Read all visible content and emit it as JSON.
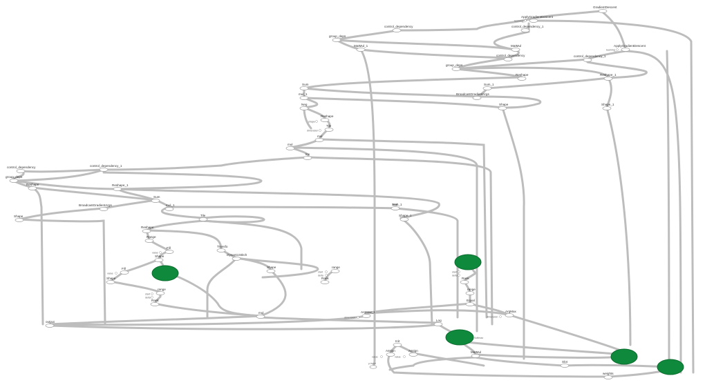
{
  "graph": {
    "nodes": [
      {
        "id": "GradientDescent",
        "label": "GradientDescent"
      },
      {
        "id": "ApplyGradientDescent",
        "label": "ApplyGradientDescent"
      },
      {
        "id": "control_dependency",
        "label": "control_dependency"
      },
      {
        "id": "control_dependency_1",
        "label": "control_dependency_1"
      },
      {
        "id": "group_deps",
        "label": "group_deps"
      },
      {
        "id": "MatMul_1",
        "label": "MatMul_1"
      },
      {
        "id": "MatMul",
        "label": "MatMul"
      },
      {
        "id": "ApplyGradientDescent_1",
        "label": "ApplyGradientDescent"
      },
      {
        "id": "control_dependency_b",
        "label": "control_dependency"
      },
      {
        "id": "control_dependency_1b",
        "label": "control_dependency_1"
      },
      {
        "id": "group_deps_b",
        "label": "group_deps"
      },
      {
        "id": "Reshape_top",
        "label": "Reshape"
      },
      {
        "id": "Reshape_1_top",
        "label": "Reshape_1"
      },
      {
        "id": "Sum",
        "label": "Sum"
      },
      {
        "id": "Sum_1",
        "label": "Sum_1"
      },
      {
        "id": "BroadcastGradientArgs",
        "label": "BroadcastGradientArgs"
      },
      {
        "id": "mul_1",
        "label": "mul_1"
      },
      {
        "id": "Shape_top",
        "label": "Shape"
      },
      {
        "id": "Shape_1_top",
        "label": "Shape_1"
      },
      {
        "id": "Neg",
        "label": "Neg"
      },
      {
        "id": "Reshape_mid",
        "label": "Reshape"
      },
      {
        "id": "Tile_mid",
        "label": "Tile"
      },
      {
        "id": "mul_mid",
        "label": "mul"
      },
      {
        "id": "mul_b",
        "label": "mul"
      },
      {
        "id": "Inv",
        "label": "Inv"
      },
      {
        "id": "control_dependency_l",
        "label": "control_dependency"
      },
      {
        "id": "control_dependency_1l",
        "label": "control_dependency_1"
      },
      {
        "id": "group_deps_l",
        "label": "group_deps"
      },
      {
        "id": "Reshape_l",
        "label": "Reshape"
      },
      {
        "id": "Reshape_1_l",
        "label": "Reshape_1"
      },
      {
        "id": "Sum_l",
        "label": "Sum"
      },
      {
        "id": "Sum_1_l",
        "label": "Sum_1"
      },
      {
        "id": "BroadcastGradientArgs_l",
        "label": "BroadcastGradientArgs"
      },
      {
        "id": "mul_1_l",
        "label": "mul_1"
      },
      {
        "id": "Shape_l",
        "label": "Shape"
      },
      {
        "id": "Tile_l",
        "label": "Tile"
      },
      {
        "id": "Mul_r",
        "label": "Mul"
      },
      {
        "id": "Shape_1_r",
        "label": "Shape_1"
      },
      {
        "id": "Reshape_c",
        "label": "Reshape"
      },
      {
        "id": "Range_c",
        "label": "Range"
      },
      {
        "id": "Fill_c",
        "label": "Fill"
      },
      {
        "id": "Shape_c",
        "label": "Shape"
      },
      {
        "id": "Fill_l",
        "label": "Fill"
      },
      {
        "id": "Shape_ll",
        "label": "Shape"
      },
      {
        "id": "range_c",
        "label": "range"
      },
      {
        "id": "Rank_c",
        "label": "Rank"
      },
      {
        "id": "Transfo",
        "label": "Transfo"
      },
      {
        "id": "DynamicStitch",
        "label": "DynamicStitch"
      },
      {
        "id": "Shape_m",
        "label": "Shape"
      },
      {
        "id": "range_m",
        "label": "range"
      },
      {
        "id": "Rank_m",
        "label": "Rank"
      },
      {
        "id": "mul_c",
        "label": "mul"
      },
      {
        "id": "ArgMax_1",
        "label": "ArgMax_1"
      },
      {
        "id": "ArgMax",
        "label": "ArgMax"
      },
      {
        "id": "Rank_r",
        "label": "Rank"
      },
      {
        "id": "range_r",
        "label": "range"
      },
      {
        "id": "Equal",
        "label": "Equal"
      },
      {
        "id": "Log",
        "label": "Log"
      },
      {
        "id": "Softmax",
        "label": "Softmax"
      },
      {
        "id": "Init",
        "label": "Init"
      },
      {
        "id": "Assign",
        "label": "Assign"
      },
      {
        "id": "Assign_1",
        "label": "Assign"
      },
      {
        "id": "MatMul_b",
        "label": "MatMul"
      },
      {
        "id": "Slot",
        "label": "Slot"
      },
      {
        "id": "weights",
        "label": "weights"
      },
      {
        "id": "output",
        "label": "output"
      }
    ],
    "small_labels": {
      "learning": "learning_",
      "value": "value",
      "start": "start",
      "delta": "delta",
      "dimension": "dimension",
      "shape": "shape",
      "y_input": "y-input",
      "x_input": "x-input"
    }
  }
}
